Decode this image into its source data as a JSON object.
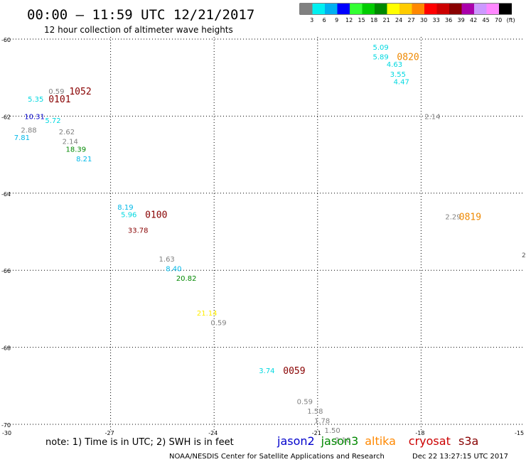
{
  "header": {
    "title": "00:00 – 11:59 UTC 12/21/2017",
    "subtitle": "12 hour collection of altimeter wave heights"
  },
  "legend": {
    "swatches": [
      "#808080",
      "#00f0f0",
      "#00b0f0",
      "#0000ff",
      "#33ff33",
      "#00cc00",
      "#008800",
      "#ffff00",
      "#ffcc00",
      "#ff8800",
      "#ff0000",
      "#cc0000",
      "#880000",
      "#aa00aa",
      "#cc99ff",
      "#ff88ff",
      "#000000"
    ],
    "labels": [
      "3",
      "6",
      "9",
      "12",
      "15",
      "18",
      "21",
      "24",
      "27",
      "30",
      "33",
      "36",
      "39",
      "42",
      "45",
      "70",
      "(ft)"
    ]
  },
  "axes": {
    "lat_ticks": [
      "-60",
      "-62",
      "-64",
      "-66",
      "-68",
      "-70"
    ],
    "lon_ticks": [
      "-30",
      "-27",
      "-24",
      "-21",
      "-18",
      "-15"
    ],
    "right_edge_labels": [
      "2"
    ]
  },
  "observations": [
    {
      "value": "5.09",
      "lon": -19.4,
      "lat": -60.2,
      "color": "#00d8e0"
    },
    {
      "value": "5.89",
      "lon": -19.4,
      "lat": -60.45,
      "color": "#00d8e0"
    },
    {
      "value": "4.63",
      "lon": -19.0,
      "lat": -60.65,
      "color": "#00d8e0"
    },
    {
      "value": "3.55",
      "lon": -18.9,
      "lat": -60.9,
      "color": "#00d8e0"
    },
    {
      "value": "4.47",
      "lon": -18.8,
      "lat": -61.1,
      "color": "#00d8e0"
    },
    {
      "value": "2.14",
      "lon": -17.9,
      "lat": -62.0,
      "color": "#808080"
    },
    {
      "value": "2.29",
      "lon": -17.3,
      "lat": -64.6,
      "color": "#808080"
    },
    {
      "value": "0.59",
      "lon": -28.8,
      "lat": -61.35,
      "color": "#808080"
    },
    {
      "value": "5.35",
      "lon": -29.4,
      "lat": -61.55,
      "color": "#00d8e0"
    },
    {
      "value": "10.31",
      "lon": -29.5,
      "lat": -62.0,
      "color": "#0000cc"
    },
    {
      "value": "5.72",
      "lon": -28.9,
      "lat": -62.1,
      "color": "#00d8e0"
    },
    {
      "value": "2.88",
      "lon": -29.6,
      "lat": -62.35,
      "color": "#808080"
    },
    {
      "value": "2.62",
      "lon": -28.5,
      "lat": -62.4,
      "color": "#808080"
    },
    {
      "value": "7.81",
      "lon": -29.8,
      "lat": -62.55,
      "color": "#00b8e8"
    },
    {
      "value": "2.14",
      "lon": -28.4,
      "lat": -62.65,
      "color": "#808080"
    },
    {
      "value": "18.39",
      "lon": -28.3,
      "lat": -62.85,
      "color": "#008800"
    },
    {
      "value": "8.21",
      "lon": -28.0,
      "lat": -63.1,
      "color": "#00b8e8"
    },
    {
      "value": "8.19",
      "lon": -26.8,
      "lat": -64.35,
      "color": "#00b8e8"
    },
    {
      "value": "5.96",
      "lon": -26.7,
      "lat": -64.55,
      "color": "#00d8e0"
    },
    {
      "value": "33.78",
      "lon": -26.5,
      "lat": -64.95,
      "color": "#880000"
    },
    {
      "value": "1.63",
      "lon": -25.6,
      "lat": -65.7,
      "color": "#808080"
    },
    {
      "value": "8.40",
      "lon": -25.4,
      "lat": -65.95,
      "color": "#00b8e8"
    },
    {
      "value": "20.82",
      "lon": -25.1,
      "lat": -66.2,
      "color": "#008800"
    },
    {
      "value": "21.14",
      "lon": -24.5,
      "lat": -67.1,
      "color": "#ffee00"
    },
    {
      "value": "0.59",
      "lon": -24.1,
      "lat": -67.35,
      "color": "#808080"
    },
    {
      "value": "3.74",
      "lon": -22.7,
      "lat": -68.6,
      "color": "#00d8e0"
    },
    {
      "value": "0.59",
      "lon": -21.6,
      "lat": -69.4,
      "color": "#808080"
    },
    {
      "value": "1.58",
      "lon": -21.3,
      "lat": -69.65,
      "color": "#808080"
    },
    {
      "value": "1.78",
      "lon": -21.1,
      "lat": -69.9,
      "color": "#808080"
    },
    {
      "value": "1.50",
      "lon": -20.8,
      "lat": -70.15,
      "color": "#808080"
    },
    {
      "value": "2.10",
      "lon": -20.5,
      "lat": -70.4,
      "color": "#808080"
    }
  ],
  "time_labels": [
    {
      "text": "0820",
      "lon": -18.7,
      "lat": -60.45,
      "color": "#ee8800"
    },
    {
      "text": "0819",
      "lon": -16.9,
      "lat": -64.6,
      "color": "#ee8800"
    },
    {
      "text": "1052",
      "lon": -28.2,
      "lat": -61.35,
      "color": "#880000"
    },
    {
      "text": "0101",
      "lon": -28.8,
      "lat": -61.55,
      "color": "#880000"
    },
    {
      "text": "0100",
      "lon": -26.0,
      "lat": -64.55,
      "color": "#880000"
    },
    {
      "text": "0059",
      "lon": -22.0,
      "lat": -68.6,
      "color": "#880000"
    }
  ],
  "footer": {
    "note": "note: 1) Time is in UTC; 2) SWH is in feet",
    "satellites": [
      {
        "name": "jason2",
        "color": "#0000cc"
      },
      {
        "name": "jason3",
        "color": "#008800"
      },
      {
        "name": "altika",
        "color": "#ff8800"
      },
      {
        "name": "cryosat",
        "color": "#cc0000"
      },
      {
        "name": "s3a",
        "color": "#880000"
      }
    ],
    "credit": "NOAA/NESDIS Center for Satellite Applications and Research",
    "timestamp": "Dec 22 13:27:15 UTC 2017"
  }
}
